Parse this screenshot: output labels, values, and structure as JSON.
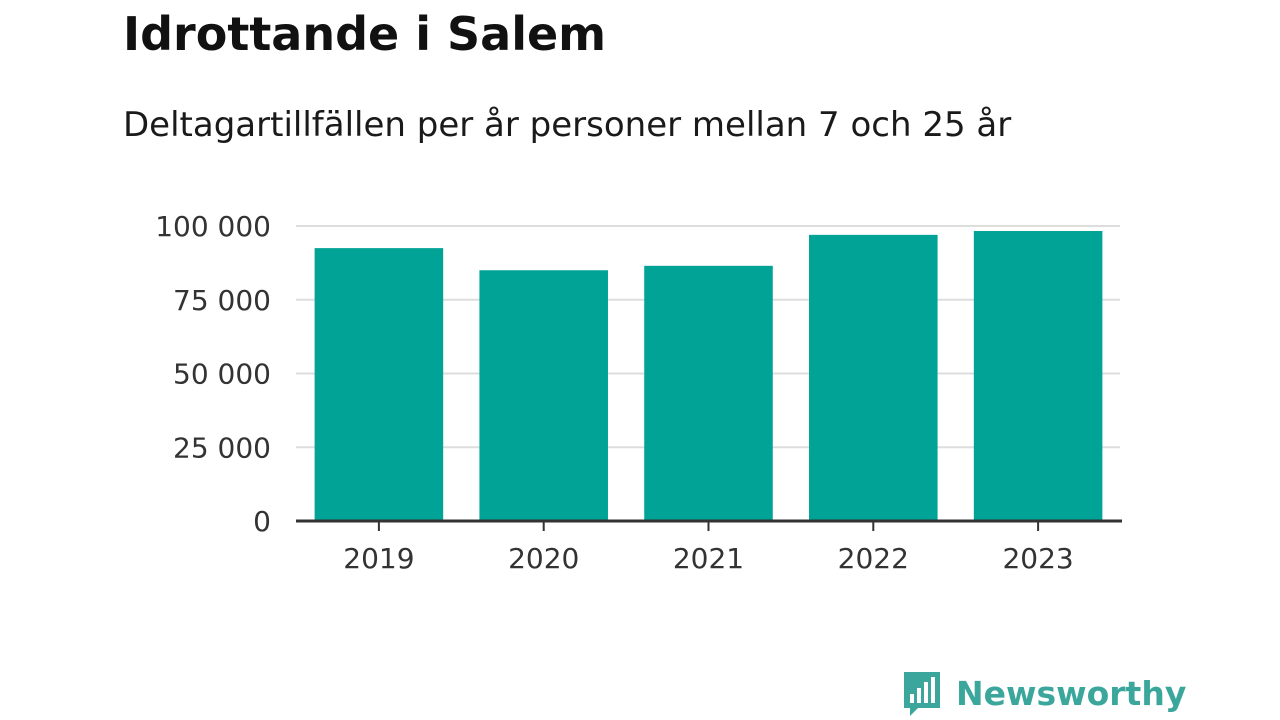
{
  "chart_data": {
    "type": "bar",
    "title": "Idrottande i Salem",
    "subtitle": "Deltagartillfällen per år personer mellan 7 och 25 år",
    "categories": [
      "2019",
      "2020",
      "2021",
      "2022",
      "2023"
    ],
    "values": [
      92500,
      85000,
      86500,
      97000,
      98300
    ],
    "ylim": [
      0,
      100000
    ],
    "yticks": [
      0,
      25000,
      50000,
      75000,
      100000
    ],
    "ytick_labels": [
      "0",
      "25 000",
      "50 000",
      "75 000",
      "100 000"
    ],
    "xlabel": "",
    "ylabel": "",
    "grid": true,
    "bar_color": "#00a396"
  },
  "logo": {
    "text": "Newsworthy",
    "icon": "bar-chart-speech-bubble-icon",
    "color": "#3ba69b"
  }
}
